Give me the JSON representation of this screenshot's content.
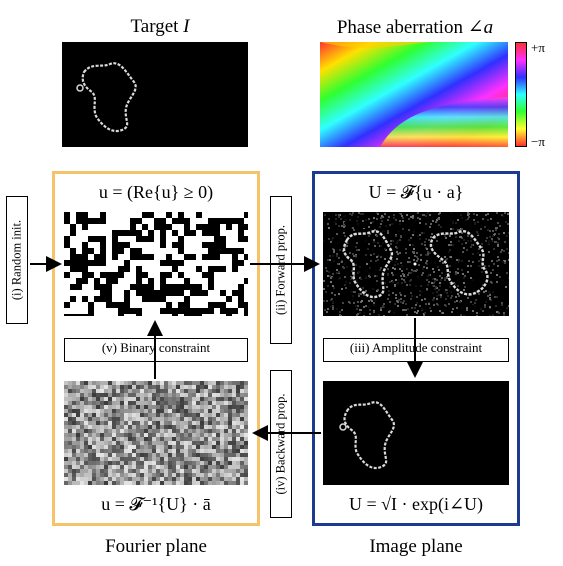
{
  "top": {
    "target_title": "Target",
    "target_symbol": "I",
    "phase_title": "Phase aberration ∠",
    "phase_symbol": "a",
    "colorbar_max": "+π",
    "colorbar_min": "−π"
  },
  "fourier": {
    "top_equation": "u = (Re{u} ≥ 0)",
    "bottom_equation": "u = 𝓕⁻¹{U} · ā",
    "caption": "Fourier plane",
    "frame_color": "#f5c46a"
  },
  "image": {
    "top_equation": "U = 𝓕{u · a}",
    "bottom_equation": "U = √I · exp(i∠U)",
    "caption": "Image plane",
    "frame_color": "#1c3a8f"
  },
  "steps": {
    "random_init": "(i) Random init.",
    "forward_prop": "(ii) Forward prop.",
    "amplitude_constraint": "(iii) Amplitude constraint",
    "backward_prop": "(iv) Backward prop.",
    "binary_constraint": "(v) Binary constraint"
  }
}
